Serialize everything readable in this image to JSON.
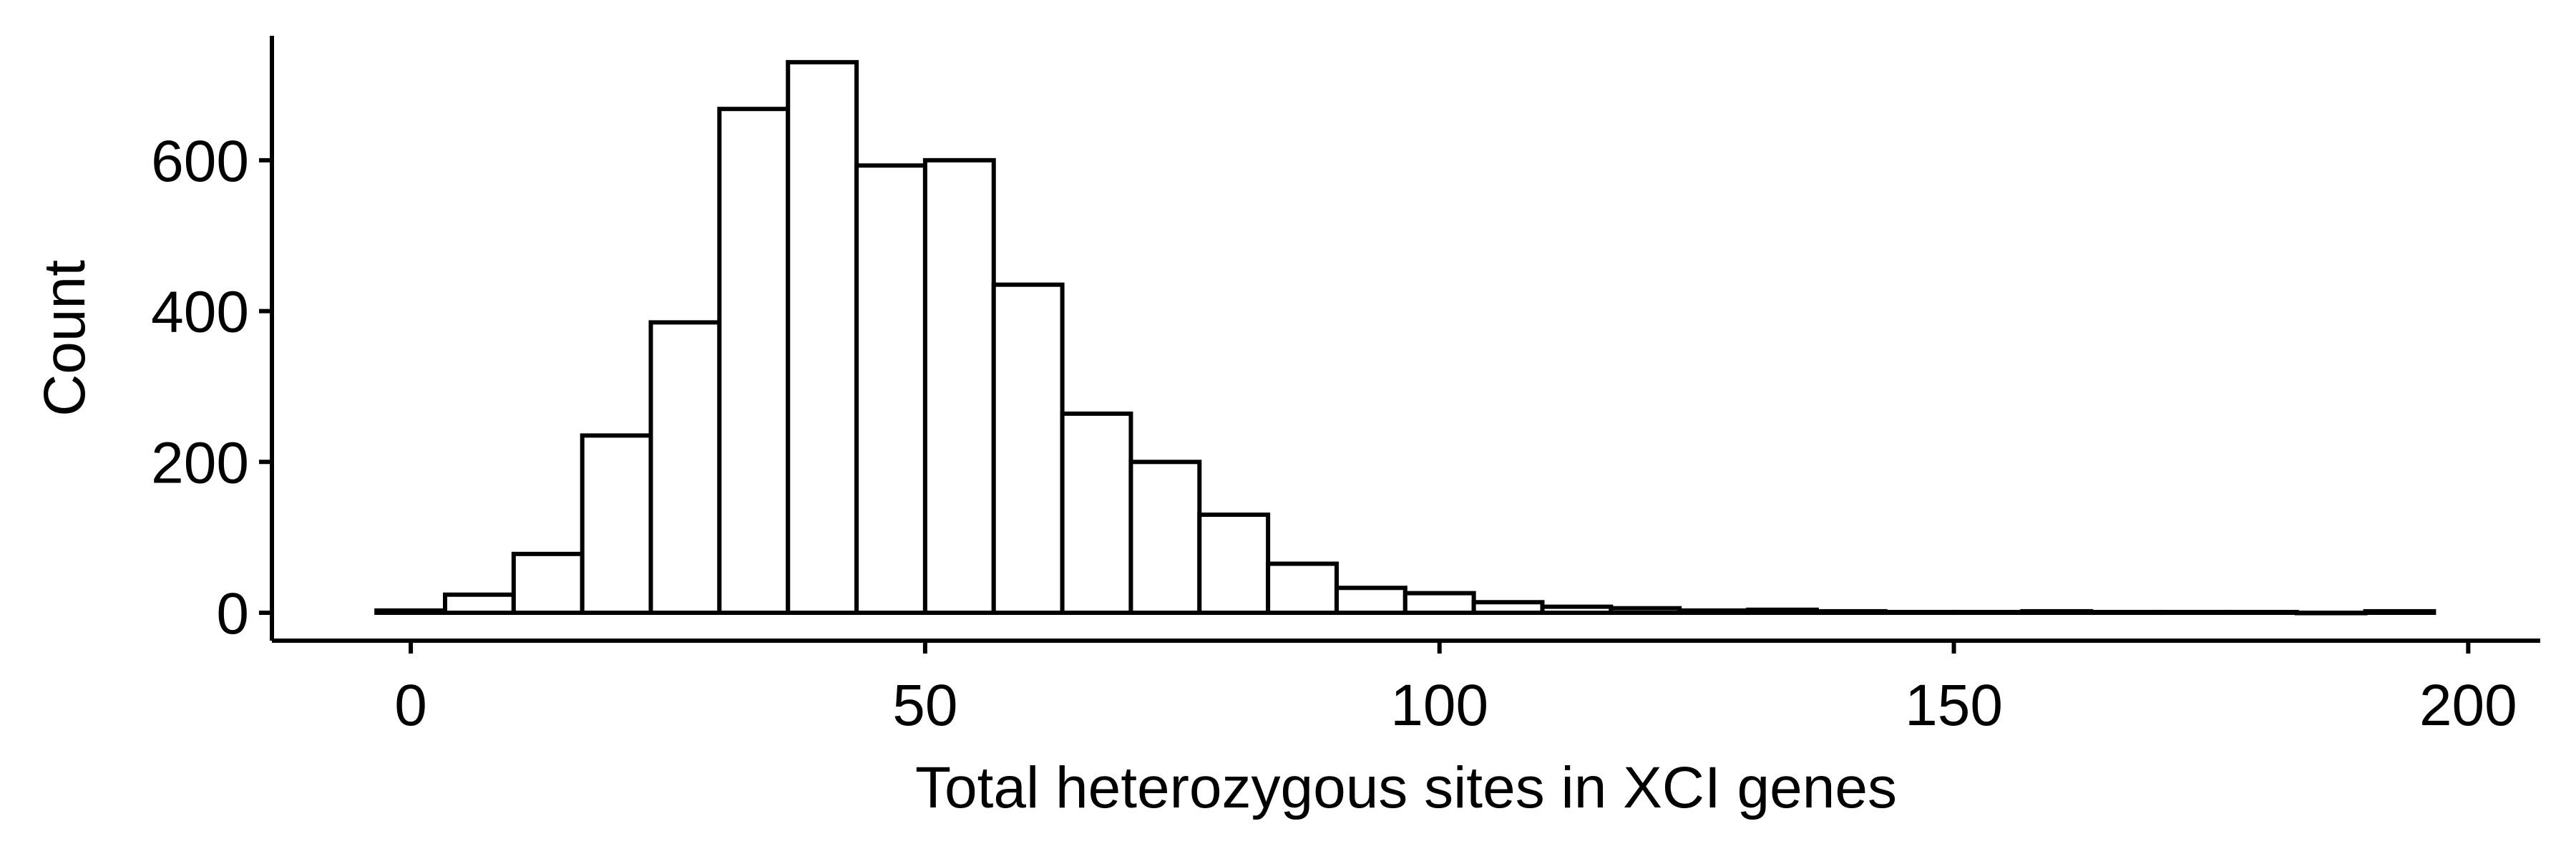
{
  "chart_data": {
    "type": "bar",
    "subtype": "histogram",
    "xlabel": "Total heterozygous sites in XCI genes",
    "ylabel": "Count",
    "xlim": [
      -13.5,
      207
    ],
    "ylim": [
      -37,
      765
    ],
    "x_ticks": [
      0,
      50,
      100,
      150,
      200
    ],
    "y_ticks": [
      0,
      200,
      400,
      600
    ],
    "bin_width": 6.667,
    "bins": [
      {
        "x0": -3.333,
        "x1": 3.333,
        "count": 3
      },
      {
        "x0": 3.333,
        "x1": 10.0,
        "count": 24
      },
      {
        "x0": 10.0,
        "x1": 16.667,
        "count": 78
      },
      {
        "x0": 16.667,
        "x1": 23.333,
        "count": 235
      },
      {
        "x0": 23.333,
        "x1": 30.0,
        "count": 385
      },
      {
        "x0": 30.0,
        "x1": 36.667,
        "count": 668
      },
      {
        "x0": 36.667,
        "x1": 43.333,
        "count": 730
      },
      {
        "x0": 43.333,
        "x1": 50.0,
        "count": 593
      },
      {
        "x0": 50.0,
        "x1": 56.667,
        "count": 600
      },
      {
        "x0": 56.667,
        "x1": 63.333,
        "count": 435
      },
      {
        "x0": 63.333,
        "x1": 70.0,
        "count": 264
      },
      {
        "x0": 70.0,
        "x1": 76.667,
        "count": 200
      },
      {
        "x0": 76.667,
        "x1": 83.333,
        "count": 130
      },
      {
        "x0": 83.333,
        "x1": 90.0,
        "count": 65
      },
      {
        "x0": 90.0,
        "x1": 96.667,
        "count": 33
      },
      {
        "x0": 96.667,
        "x1": 103.333,
        "count": 26
      },
      {
        "x0": 103.333,
        "x1": 110.0,
        "count": 14
      },
      {
        "x0": 110.0,
        "x1": 116.667,
        "count": 8
      },
      {
        "x0": 116.667,
        "x1": 123.333,
        "count": 6
      },
      {
        "x0": 123.333,
        "x1": 130.0,
        "count": 3
      },
      {
        "x0": 130.0,
        "x1": 136.667,
        "count": 4
      },
      {
        "x0": 136.667,
        "x1": 143.333,
        "count": 2
      },
      {
        "x0": 143.333,
        "x1": 150.0,
        "count": 1
      },
      {
        "x0": 150.0,
        "x1": 156.667,
        "count": 1
      },
      {
        "x0": 156.667,
        "x1": 163.333,
        "count": 2
      },
      {
        "x0": 163.333,
        "x1": 170.0,
        "count": 1
      },
      {
        "x0": 170.0,
        "x1": 176.667,
        "count": 1
      },
      {
        "x0": 176.667,
        "x1": 183.333,
        "count": 1
      },
      {
        "x0": 183.333,
        "x1": 190.0,
        "count": 0
      },
      {
        "x0": 190.0,
        "x1": 196.667,
        "count": 2
      }
    ],
    "grid": false,
    "legend": "none",
    "colors": {
      "bar_fill": "#ffffff",
      "bar_stroke": "#000000",
      "axis": "#000000"
    }
  }
}
